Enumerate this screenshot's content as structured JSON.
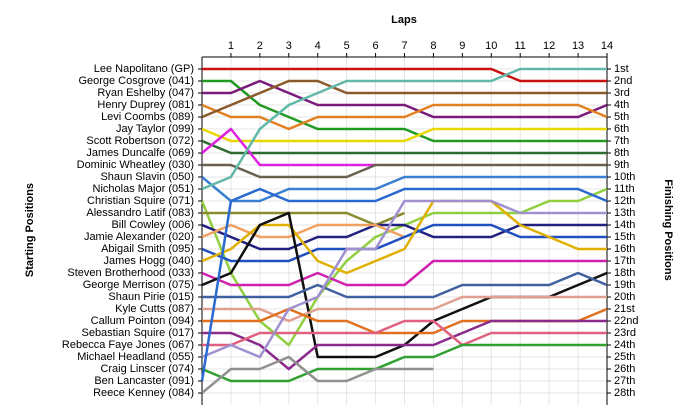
{
  "chart_data": {
    "type": "line",
    "title": "Laps",
    "y_label": "Starting Positions",
    "y2_label": "Finishing Positions",
    "x": [
      0,
      1,
      2,
      3,
      4,
      5,
      6,
      7,
      8,
      9,
      10,
      11,
      12,
      13,
      14
    ],
    "xlim": [
      0,
      14
    ],
    "xticks": [
      1,
      2,
      3,
      4,
      5,
      6,
      7,
      8,
      9,
      10,
      11,
      12,
      13,
      14
    ],
    "ylim": [
      29,
      0
    ],
    "yticks": [
      {
        "value": 1,
        "label": "1st"
      },
      {
        "value": 2,
        "label": "2nd"
      },
      {
        "value": 3,
        "label": "3rd"
      },
      {
        "value": 4,
        "label": "4th"
      },
      {
        "value": 5,
        "label": "5th"
      },
      {
        "value": 6,
        "label": "6th"
      },
      {
        "value": 7,
        "label": "7th"
      },
      {
        "value": 8,
        "label": "8th"
      },
      {
        "value": 9,
        "label": "9th"
      },
      {
        "value": 10,
        "label": "10th"
      },
      {
        "value": 11,
        "label": "11th"
      },
      {
        "value": 12,
        "label": "12th"
      },
      {
        "value": 13,
        "label": "13th"
      },
      {
        "value": 14,
        "label": "14th"
      },
      {
        "value": 15,
        "label": "15th"
      },
      {
        "value": 16,
        "label": "16th"
      },
      {
        "value": 17,
        "label": "17th"
      },
      {
        "value": 18,
        "label": "18th"
      },
      {
        "value": 19,
        "label": "19th"
      },
      {
        "value": 20,
        "label": "20th"
      },
      {
        "value": 21,
        "label": "21st"
      },
      {
        "value": 22,
        "label": "22nd"
      },
      {
        "value": 23,
        "label": "23rd"
      },
      {
        "value": 24,
        "label": "24th"
      },
      {
        "value": 25,
        "label": "25th"
      },
      {
        "value": 26,
        "label": "26th"
      },
      {
        "value": 27,
        "label": "27th"
      },
      {
        "value": 28,
        "label": "28th"
      }
    ],
    "grid": true,
    "series": [
      {
        "name": "Lee Napolitano (GP)",
        "color": "#cc1111",
        "values": [
          1,
          1,
          1,
          1,
          1,
          1,
          1,
          1,
          1,
          1,
          1,
          2,
          2,
          2,
          2
        ]
      },
      {
        "name": "George Cosgrove (041)",
        "color": "#229922",
        "values": [
          2,
          2,
          4,
          5,
          6,
          6,
          6,
          6,
          7,
          7,
          7,
          7,
          7,
          7,
          7
        ]
      },
      {
        "name": "Ryan Eshelby (047)",
        "color": "#7a1a7a",
        "values": [
          3,
          3,
          2,
          3,
          4,
          4,
          4,
          4,
          5,
          5,
          5,
          5,
          5,
          5,
          4
        ]
      },
      {
        "name": "Henry Duprey (081)",
        "color": "#e08020",
        "values": [
          4,
          5,
          5,
          6,
          5,
          5,
          5,
          5,
          4,
          4,
          4,
          4,
          4,
          4,
          5
        ]
      },
      {
        "name": "Levi Coombs (089)",
        "color": "#8b5a2b",
        "values": [
          5,
          4,
          3,
          2,
          2,
          3,
          3,
          3,
          3,
          3,
          3,
          3,
          3,
          3,
          3
        ]
      },
      {
        "name": "Jay Taylor (099)",
        "color": "#e8d800",
        "values": [
          6,
          7,
          7,
          7,
          7,
          7,
          7,
          7,
          6,
          6,
          6,
          6,
          6,
          6,
          6
        ]
      },
      {
        "name": "Scott Robertson (072)",
        "color": "#2e6b2e",
        "values": [
          7,
          8,
          8,
          8,
          8,
          8,
          8,
          8,
          8,
          8,
          8,
          8,
          8,
          8,
          8
        ]
      },
      {
        "name": "James Duncalfe (069)",
        "color": "#e020e0",
        "values": [
          8,
          6,
          9,
          9,
          9,
          9,
          9,
          null,
          null,
          null,
          null,
          null,
          null,
          null,
          null
        ]
      },
      {
        "name": "Dominic Wheatley (030)",
        "color": "#6a6050",
        "values": [
          9,
          9,
          10,
          10,
          10,
          10,
          9,
          9,
          9,
          9,
          9,
          9,
          9,
          9,
          9
        ]
      },
      {
        "name": "Shaun Slavin (050)",
        "color": "#3a80d0",
        "values": [
          10,
          12,
          12,
          11,
          11,
          11,
          11,
          10,
          10,
          10,
          10,
          10,
          10,
          10,
          10
        ]
      },
      {
        "name": "Nicholas Major (051)",
        "color": "#60b8a8",
        "values": [
          11,
          10,
          6,
          4,
          3,
          2,
          2,
          2,
          2,
          2,
          2,
          1,
          1,
          1,
          1
        ]
      },
      {
        "name": "Christian Squire (071)",
        "color": "#90d040",
        "values": [
          12,
          18,
          22,
          24,
          20,
          17,
          15,
          14,
          13,
          13,
          13,
          13,
          12,
          12,
          11
        ]
      },
      {
        "name": "Alessandro Latif (083)",
        "color": "#8a8a30",
        "values": [
          13,
          13,
          13,
          13,
          13,
          13,
          14,
          13,
          null,
          null,
          null,
          null,
          null,
          null,
          null
        ]
      },
      {
        "name": "Bill Cowley (006)",
        "color": "#202080",
        "values": [
          14,
          15,
          16,
          16,
          15,
          15,
          14,
          14,
          15,
          15,
          15,
          14,
          14,
          14,
          14
        ]
      },
      {
        "name": "Jamie Alexander (020)",
        "color": "#f0a060",
        "values": [
          15,
          14,
          15,
          15,
          14,
          14,
          14,
          15,
          null,
          null,
          null,
          null,
          null,
          null,
          null
        ]
      },
      {
        "name": "Abigail Smith (095)",
        "color": "#2050c0",
        "values": [
          16,
          17,
          17,
          17,
          16,
          16,
          16,
          15,
          14,
          14,
          14,
          15,
          15,
          15,
          15
        ]
      },
      {
        "name": "James Hogg (040)",
        "color": "#e0b000",
        "values": [
          17,
          16,
          14,
          14,
          17,
          18,
          17,
          16,
          12,
          12,
          12,
          14,
          15,
          16,
          16
        ]
      },
      {
        "name": "Steven Brotherhood (033)",
        "color": "#d020b0",
        "values": [
          18,
          19,
          19,
          19,
          18,
          19,
          19,
          19,
          17,
          17,
          17,
          17,
          17,
          17,
          17
        ]
      },
      {
        "name": "George Merrison (075)",
        "color": "#101010",
        "values": [
          19,
          18,
          14,
          13,
          25,
          25,
          25,
          24,
          22,
          21,
          20,
          20,
          20,
          19,
          18
        ]
      },
      {
        "name": "Shaun Pirie (015)",
        "color": "#4060a0",
        "values": [
          20,
          20,
          20,
          20,
          19,
          20,
          20,
          20,
          20,
          19,
          19,
          19,
          19,
          18,
          19
        ]
      },
      {
        "name": "Kyle Cutts (087)",
        "color": "#e0a090",
        "values": [
          21,
          21,
          21,
          22,
          21,
          21,
          21,
          21,
          21,
          20,
          20,
          20,
          20,
          20,
          20
        ]
      },
      {
        "name": "Callum Pointon (094)",
        "color": "#e07020",
        "values": [
          22,
          22,
          22,
          21,
          22,
          22,
          23,
          23,
          23,
          22,
          22,
          22,
          22,
          22,
          21
        ]
      },
      {
        "name": "Sebastian Squire (017)",
        "color": "#8a2a8a",
        "values": [
          23,
          23,
          24,
          26,
          24,
          24,
          24,
          24,
          24,
          23,
          22,
          22,
          22,
          22,
          22
        ]
      },
      {
        "name": "Rebecca Faye Jones (067)",
        "color": "#e06080",
        "values": [
          24,
          24,
          23,
          23,
          23,
          23,
          23,
          22,
          22,
          24,
          23,
          23,
          23,
          23,
          23
        ]
      },
      {
        "name": "Michael Headland (055)",
        "color": "#a090d0",
        "values": [
          25,
          24,
          25,
          21,
          20,
          16,
          16,
          12,
          12,
          12,
          12,
          13,
          13,
          13,
          13
        ]
      },
      {
        "name": "Craig Linscer (074)",
        "color": "#30a030",
        "values": [
          26,
          27,
          27,
          27,
          26,
          26,
          26,
          25,
          25,
          24,
          24,
          24,
          24,
          24,
          24
        ]
      },
      {
        "name": "Ben Lancaster (091)",
        "color": "#2a6ad0",
        "values": [
          27,
          12,
          11,
          12,
          12,
          12,
          12,
          11,
          11,
          11,
          11,
          11,
          11,
          11,
          12
        ]
      },
      {
        "name": "Reece Kenney (084)",
        "color": "#909090",
        "values": [
          28,
          26,
          26,
          25,
          27,
          27,
          26,
          26,
          26,
          null,
          null,
          null,
          null,
          null,
          null
        ]
      }
    ]
  }
}
